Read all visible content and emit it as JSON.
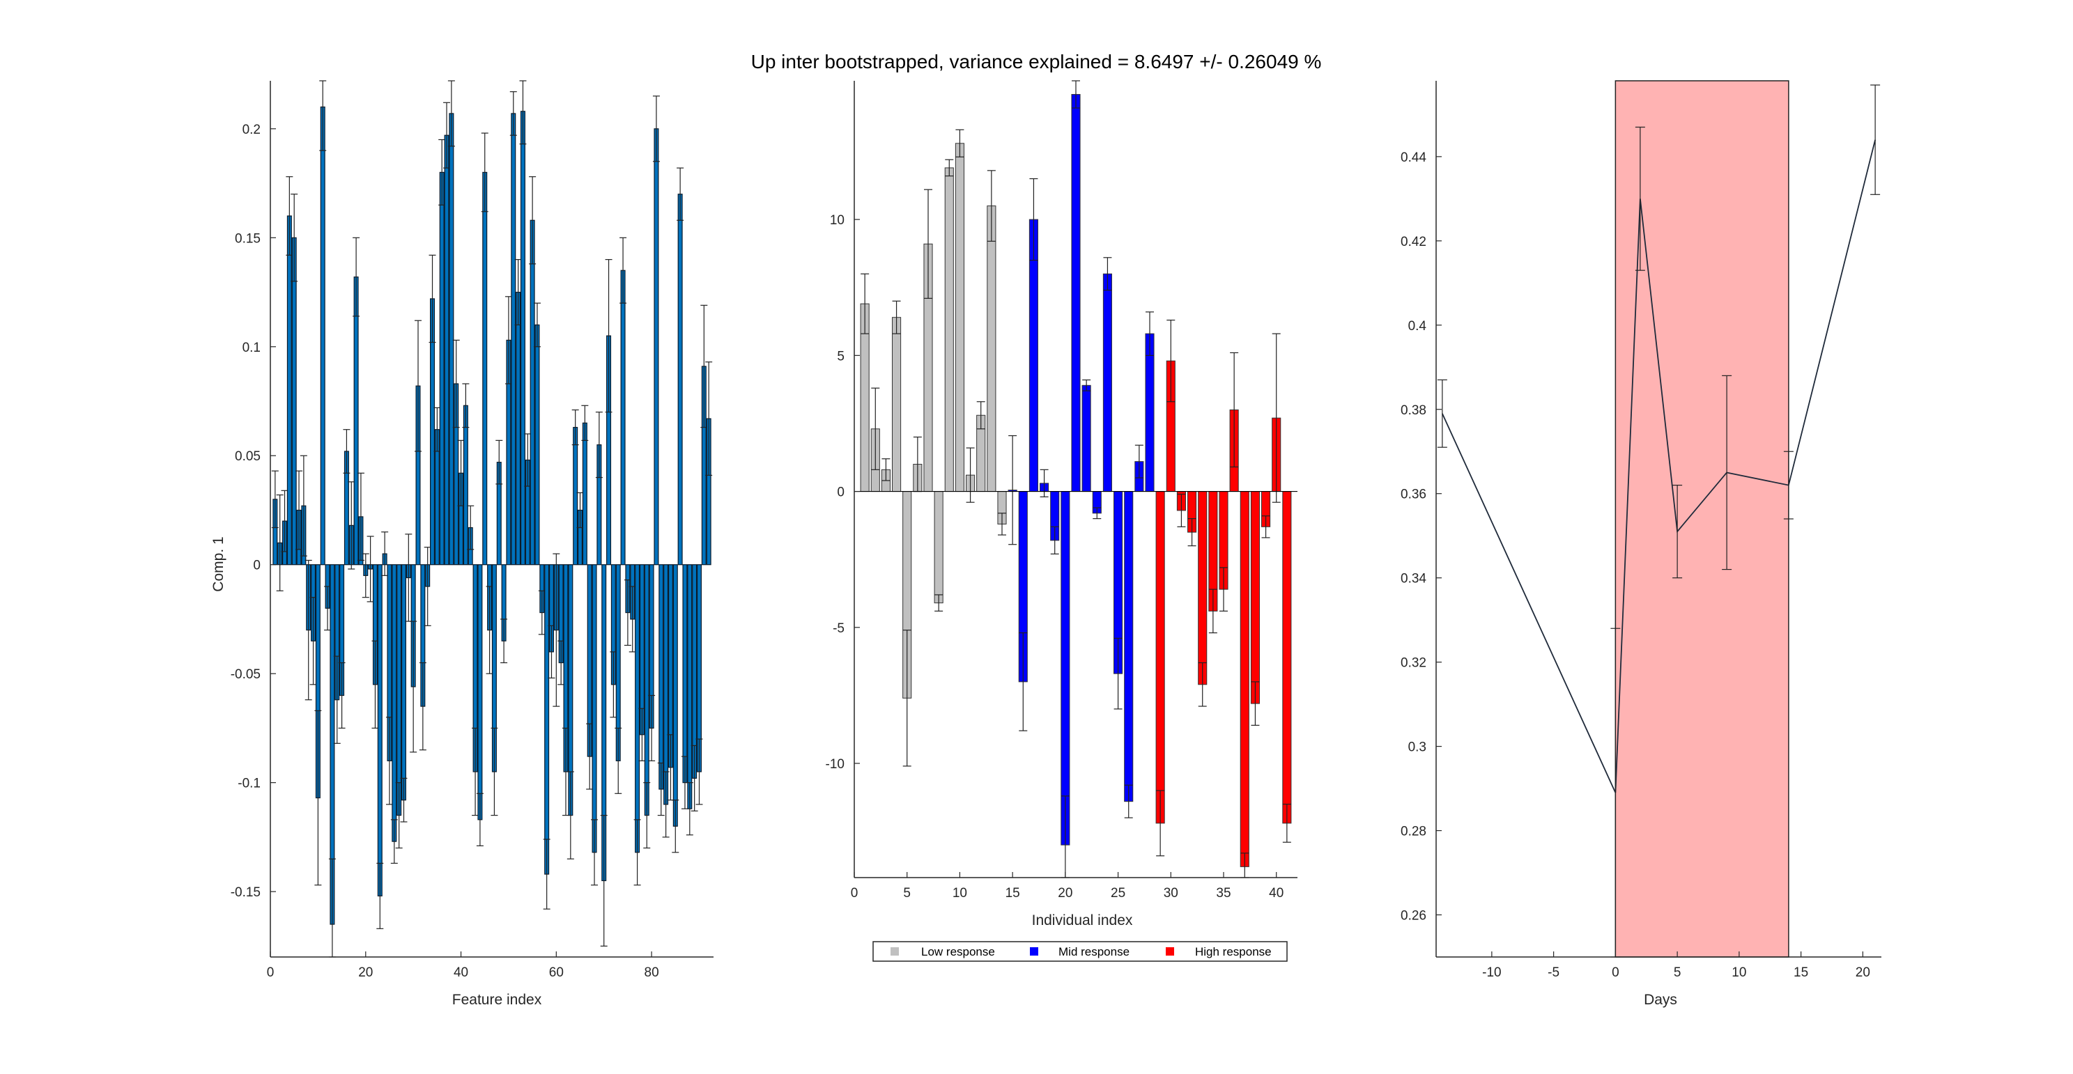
{
  "figure": {
    "title": "Up inter bootstrapped, variance explained = 8.6497 +/- 0.26049 %"
  },
  "chart_data": [
    {
      "type": "bar",
      "xlabel": "Feature index",
      "ylabel": "Comp. 1",
      "xlim": [
        0,
        93
      ],
      "ylim": [
        -0.18,
        0.222
      ],
      "xticks": [
        "0",
        "20",
        "40",
        "60",
        "80"
      ],
      "yticks": [
        "0.2",
        "0.15",
        "0.1",
        "0.05",
        "0",
        "-0.05",
        "-0.1",
        "-0.15"
      ],
      "bar_color": "#0072BD",
      "x": [
        1,
        2,
        3,
        4,
        5,
        6,
        7,
        8,
        9,
        10,
        11,
        12,
        13,
        14,
        15,
        16,
        17,
        18,
        19,
        20,
        21,
        22,
        23,
        24,
        25,
        26,
        27,
        28,
        29,
        30,
        31,
        32,
        33,
        34,
        35,
        36,
        37,
        38,
        39,
        40,
        41,
        42,
        43,
        44,
        45,
        46,
        47,
        48,
        49,
        50,
        51,
        52,
        53,
        54,
        55,
        56,
        57,
        58,
        59,
        60,
        61,
        62,
        63,
        64,
        65,
        66,
        67,
        68,
        69,
        70,
        71,
        72,
        73,
        74,
        75,
        76,
        77,
        78,
        79,
        80,
        81,
        82,
        83,
        84,
        85,
        86,
        87,
        88,
        89,
        90,
        91,
        92
      ],
      "values": [
        0.03,
        0.01,
        0.02,
        0.16,
        0.15,
        0.025,
        0.027,
        -0.03,
        -0.035,
        -0.107,
        0.21,
        -0.02,
        -0.165,
        -0.062,
        -0.06,
        0.052,
        0.018,
        0.132,
        0.022,
        -0.005,
        -0.002,
        -0.055,
        -0.152,
        0.005,
        -0.09,
        -0.127,
        -0.115,
        -0.108,
        -0.006,
        -0.056,
        0.082,
        -0.065,
        -0.01,
        0.122,
        0.062,
        0.18,
        0.197,
        0.207,
        0.083,
        0.042,
        0.073,
        0.017,
        -0.095,
        -0.117,
        0.18,
        -0.03,
        -0.095,
        0.047,
        -0.035,
        0.103,
        0.207,
        0.125,
        0.208,
        0.048,
        0.158,
        0.11,
        -0.022,
        -0.142,
        -0.04,
        -0.03,
        -0.045,
        -0.095,
        -0.115,
        0.063,
        0.025,
        0.065,
        -0.088,
        -0.132,
        0.055,
        -0.145,
        0.105,
        -0.055,
        -0.09,
        0.135,
        -0.022,
        -0.025,
        -0.132,
        -0.078,
        -0.115,
        -0.075,
        0.2,
        -0.103,
        -0.11,
        -0.093,
        -0.12,
        0.17,
        -0.1,
        -0.112,
        -0.098,
        -0.095,
        0.091,
        0.067
      ],
      "errors": [
        0.013,
        0.022,
        0.014,
        0.018,
        0.02,
        0.018,
        0.023,
        0.032,
        0.02,
        0.04,
        0.02,
        0.01,
        0.03,
        0.02,
        0.015,
        0.01,
        0.02,
        0.018,
        0.02,
        0.01,
        0.015,
        0.02,
        0.015,
        0.01,
        0.02,
        0.01,
        0.015,
        0.01,
        0.02,
        0.03,
        0.03,
        0.02,
        0.018,
        0.02,
        0.01,
        0.015,
        0.015,
        0.015,
        0.02,
        0.015,
        0.01,
        0.01,
        0.02,
        0.012,
        0.018,
        0.02,
        0.02,
        0.01,
        0.01,
        0.02,
        0.01,
        0.015,
        0.015,
        0.012,
        0.02,
        0.01,
        0.01,
        0.016,
        0.012,
        0.035,
        0.01,
        0.02,
        0.02,
        0.008,
        0.008,
        0.008,
        0.015,
        0.015,
        0.015,
        0.03,
        0.035,
        0.015,
        0.015,
        0.015,
        0.015,
        0.015,
        0.015,
        0.012,
        0.015,
        0.015,
        0.015,
        0.012,
        0.015,
        0.015,
        0.012,
        0.012,
        0.012,
        0.012,
        0.015,
        0.015,
        0.028,
        0.026
      ]
    },
    {
      "type": "bar",
      "xlabel": "Individual index",
      "ylabel": "",
      "xlim": [
        0,
        42
      ],
      "ylim": [
        -14.2,
        15.1
      ],
      "xticks": [
        "0",
        "5",
        "10",
        "15",
        "20",
        "25",
        "30",
        "35",
        "40"
      ],
      "yticks": [
        "10",
        "5",
        "0",
        "-5",
        "-10"
      ],
      "legend": {
        "placement": "bottom",
        "entries": [
          {
            "label": "Low response",
            "color": "#C0C0C0"
          },
          {
            "label": "Mid response",
            "color": "#0000FF"
          },
          {
            "label": "High response",
            "color": "#FF0000"
          }
        ]
      },
      "x": [
        1,
        2,
        3,
        4,
        5,
        6,
        7,
        8,
        9,
        10,
        11,
        12,
        13,
        14,
        15,
        16,
        17,
        18,
        19,
        20,
        21,
        22,
        23,
        24,
        25,
        26,
        27,
        28,
        29,
        30,
        31,
        32,
        33,
        34,
        35,
        36,
        37,
        38,
        39,
        40,
        41
      ],
      "groups": [
        "low",
        "low",
        "low",
        "low",
        "low",
        "low",
        "low",
        "low",
        "low",
        "low",
        "low",
        "low",
        "low",
        "low",
        "mid",
        "mid",
        "mid",
        "mid",
        "mid",
        "mid",
        "mid",
        "mid",
        "mid",
        "mid",
        "mid",
        "mid",
        "mid",
        "mid",
        "high",
        "high",
        "high",
        "high",
        "high",
        "high",
        "high",
        "high",
        "high",
        "high",
        "high",
        "high",
        "high"
      ],
      "values": [
        6.9,
        2.3,
        0.8,
        6.4,
        -7.6,
        1.0,
        9.1,
        -4.1,
        11.9,
        12.8,
        0.6,
        2.8,
        10.5,
        -1.2,
        0.05,
        -7.0,
        10.0,
        0.3,
        -1.8,
        -13.0,
        14.6,
        3.9,
        -0.8,
        8.0,
        -6.7,
        -11.4,
        1.1,
        5.8,
        -12.2,
        4.8,
        -0.7,
        -1.5,
        -7.1,
        -4.4,
        -3.6,
        3.0,
        -13.8,
        -7.8,
        -1.3,
        2.7,
        -12.2
      ],
      "errors": [
        1.1,
        1.5,
        0.4,
        0.6,
        2.5,
        1.0,
        2.0,
        0.3,
        0.3,
        0.5,
        1.0,
        0.5,
        1.3,
        0.4,
        2.0,
        1.8,
        1.5,
        0.5,
        0.5,
        1.8,
        0.5,
        0.2,
        0.2,
        0.6,
        1.3,
        0.6,
        0.6,
        0.8,
        1.2,
        1.5,
        0.6,
        0.5,
        0.8,
        0.8,
        0.8,
        2.1,
        0.5,
        0.8,
        0.4,
        3.1,
        0.7
      ]
    },
    {
      "type": "line",
      "xlabel": "Days",
      "ylabel": "",
      "xlim": [
        -14.5,
        21.5
      ],
      "ylim": [
        0.25,
        0.458
      ],
      "xticks": [
        "-10",
        "-5",
        "0",
        "5",
        "10",
        "15",
        "20"
      ],
      "yticks": [
        "0.44",
        "0.42",
        "0.4",
        "0.38",
        "0.36",
        "0.34",
        "0.32",
        "0.3",
        "0.28",
        "0.26"
      ],
      "shaded_region": {
        "x_from": 0,
        "x_to": 14,
        "color": "#FFB3B3"
      },
      "x": [
        -14,
        0,
        2,
        5,
        9,
        14,
        21
      ],
      "values": [
        0.379,
        0.289,
        0.43,
        0.351,
        0.365,
        0.362,
        0.444
      ],
      "errors": [
        0.008,
        0.039,
        0.017,
        0.011,
        0.023,
        0.008,
        0.013
      ]
    }
  ]
}
